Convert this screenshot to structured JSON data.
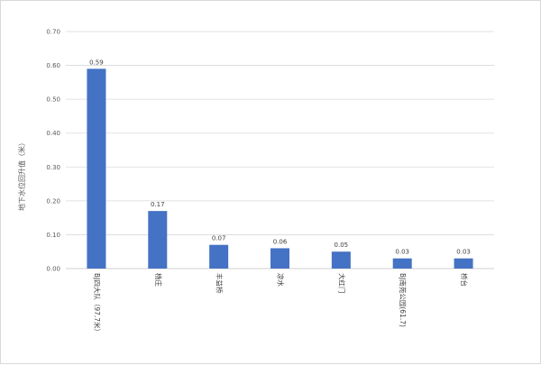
{
  "chart_data": {
    "type": "bar",
    "title": "",
    "xlabel": "",
    "ylabel": "地下水位回升值（米）",
    "categories": [
      "BJ四大队（97.7米）",
      "杨庄",
      "丰益桥",
      "凉水",
      "大红门",
      "BJ南苑公园(61.7)",
      "桥台"
    ],
    "values": [
      0.59,
      0.17,
      0.07,
      0.06,
      0.05,
      0.03,
      0.03
    ],
    "value_labels": [
      "0.59",
      "0.17",
      "0.07",
      "0.06",
      "0.05",
      "0.03",
      "0.03"
    ],
    "ylim": [
      0,
      0.7
    ],
    "yticks": [
      "0.00",
      "0.10",
      "0.20",
      "0.30",
      "0.40",
      "0.50",
      "0.60",
      "0.70"
    ],
    "grid": true,
    "legend": "none",
    "bar_color": "#4472c4"
  }
}
